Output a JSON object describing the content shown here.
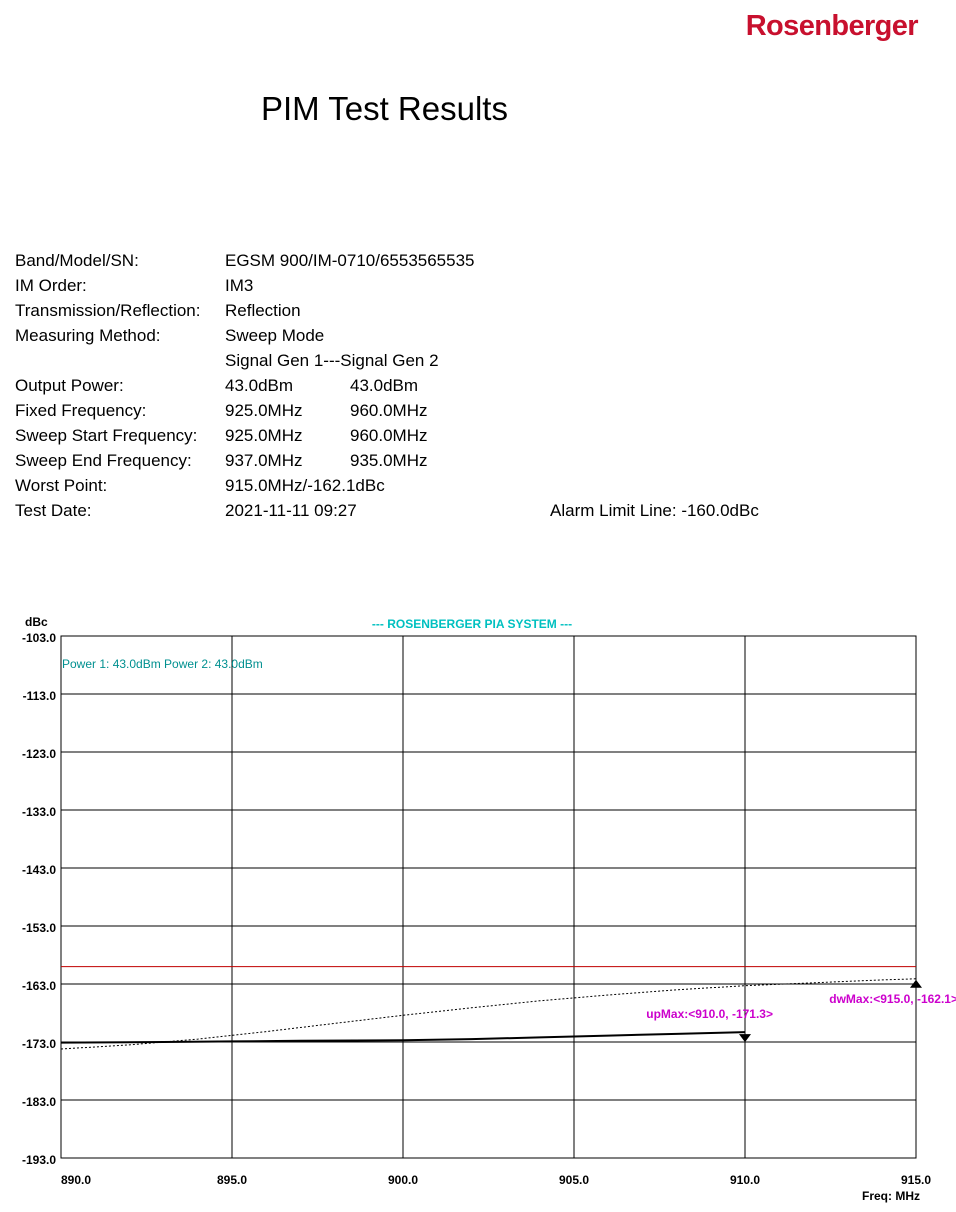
{
  "header": {
    "brand": "Rosenberger",
    "title": "PIM Test Results"
  },
  "info": [
    {
      "label": "Band/Model/SN:",
      "value1": "EGSM 900/IM-0710/6553565535",
      "value2": ""
    },
    {
      "label": "IM Order:",
      "value1": "IM3",
      "value2": ""
    },
    {
      "label": "Transmission/Reflection:",
      "value1": "Reflection",
      "value2": ""
    },
    {
      "label": "Measuring Method:",
      "value1": "Sweep Mode",
      "value2": ""
    },
    {
      "label": "",
      "value1": "Signal Gen 1---Signal Gen 2",
      "value2": ""
    },
    {
      "label": "Output Power:",
      "value1": "43.0dBm",
      "value2": "43.0dBm"
    },
    {
      "label": "Fixed Frequency:",
      "value1": "925.0MHz",
      "value2": "960.0MHz"
    },
    {
      "label": "Sweep Start Frequency:",
      "value1": "925.0MHz",
      "value2": "960.0MHz"
    },
    {
      "label": "Sweep End Frequency:",
      "value1": "937.0MHz",
      "value2": "935.0MHz"
    },
    {
      "label": "Worst Point:",
      "value1": "915.0MHz/-162.1dBc",
      "value2": ""
    },
    {
      "label": "Test Date:",
      "value1": "2021-11-11 09:27",
      "value2": ""
    }
  ],
  "alarm_text": "Alarm Limit Line: -160.0dBc",
  "chart_data": {
    "type": "line",
    "title": "--- ROSENBERGER PIA SYSTEM ---",
    "power_text": "Power 1: 43.0dBm  Power 2: 43.0dBm",
    "ylabel": "dBc",
    "xlabel": "Freq: MHz",
    "xlim": [
      890.0,
      915.0
    ],
    "ylim": [
      -193.0,
      -103.0
    ],
    "x_ticks": [
      "890.0",
      "895.0",
      "900.0",
      "905.0",
      "910.0",
      "915.0"
    ],
    "y_ticks": [
      "-103.0",
      "-113.0",
      "-123.0",
      "-133.0",
      "-143.0",
      "-153.0",
      "-163.0",
      "-173.0",
      "-183.0",
      "-193.0"
    ],
    "grid": true,
    "alarm_limit": -160.0,
    "series": [
      {
        "style": "solid",
        "x": [
          890,
          893,
          895,
          897,
          900,
          902,
          904,
          906,
          908,
          910
        ],
        "y": [
          -173.1,
          -173.0,
          -172.9,
          -172.8,
          -172.7,
          -172.5,
          -172.2,
          -171.9,
          -171.6,
          -171.3
        ]
      },
      {
        "style": "dotted",
        "x": [
          890,
          892,
          894,
          896,
          898,
          900,
          902,
          904,
          906,
          908,
          910,
          912,
          914,
          915
        ],
        "y": [
          -174.2,
          -173.5,
          -172.5,
          -171.2,
          -169.8,
          -168.4,
          -167.1,
          -165.9,
          -164.9,
          -164.0,
          -163.3,
          -162.8,
          -162.3,
          -162.1
        ]
      }
    ],
    "markers": [
      {
        "label": "dwMax:<915.0, -162.1>",
        "x": 915.0,
        "y": -162.1,
        "dir": "up"
      },
      {
        "label": "upMax:<910.0, -171.3>",
        "x": 910.0,
        "y": -171.3,
        "dir": "down"
      }
    ],
    "colors": {
      "grid": "#000000",
      "alarm": "#c00000",
      "title": "#00c0c0",
      "power": "#009090",
      "marker": "#cc00cc"
    }
  }
}
